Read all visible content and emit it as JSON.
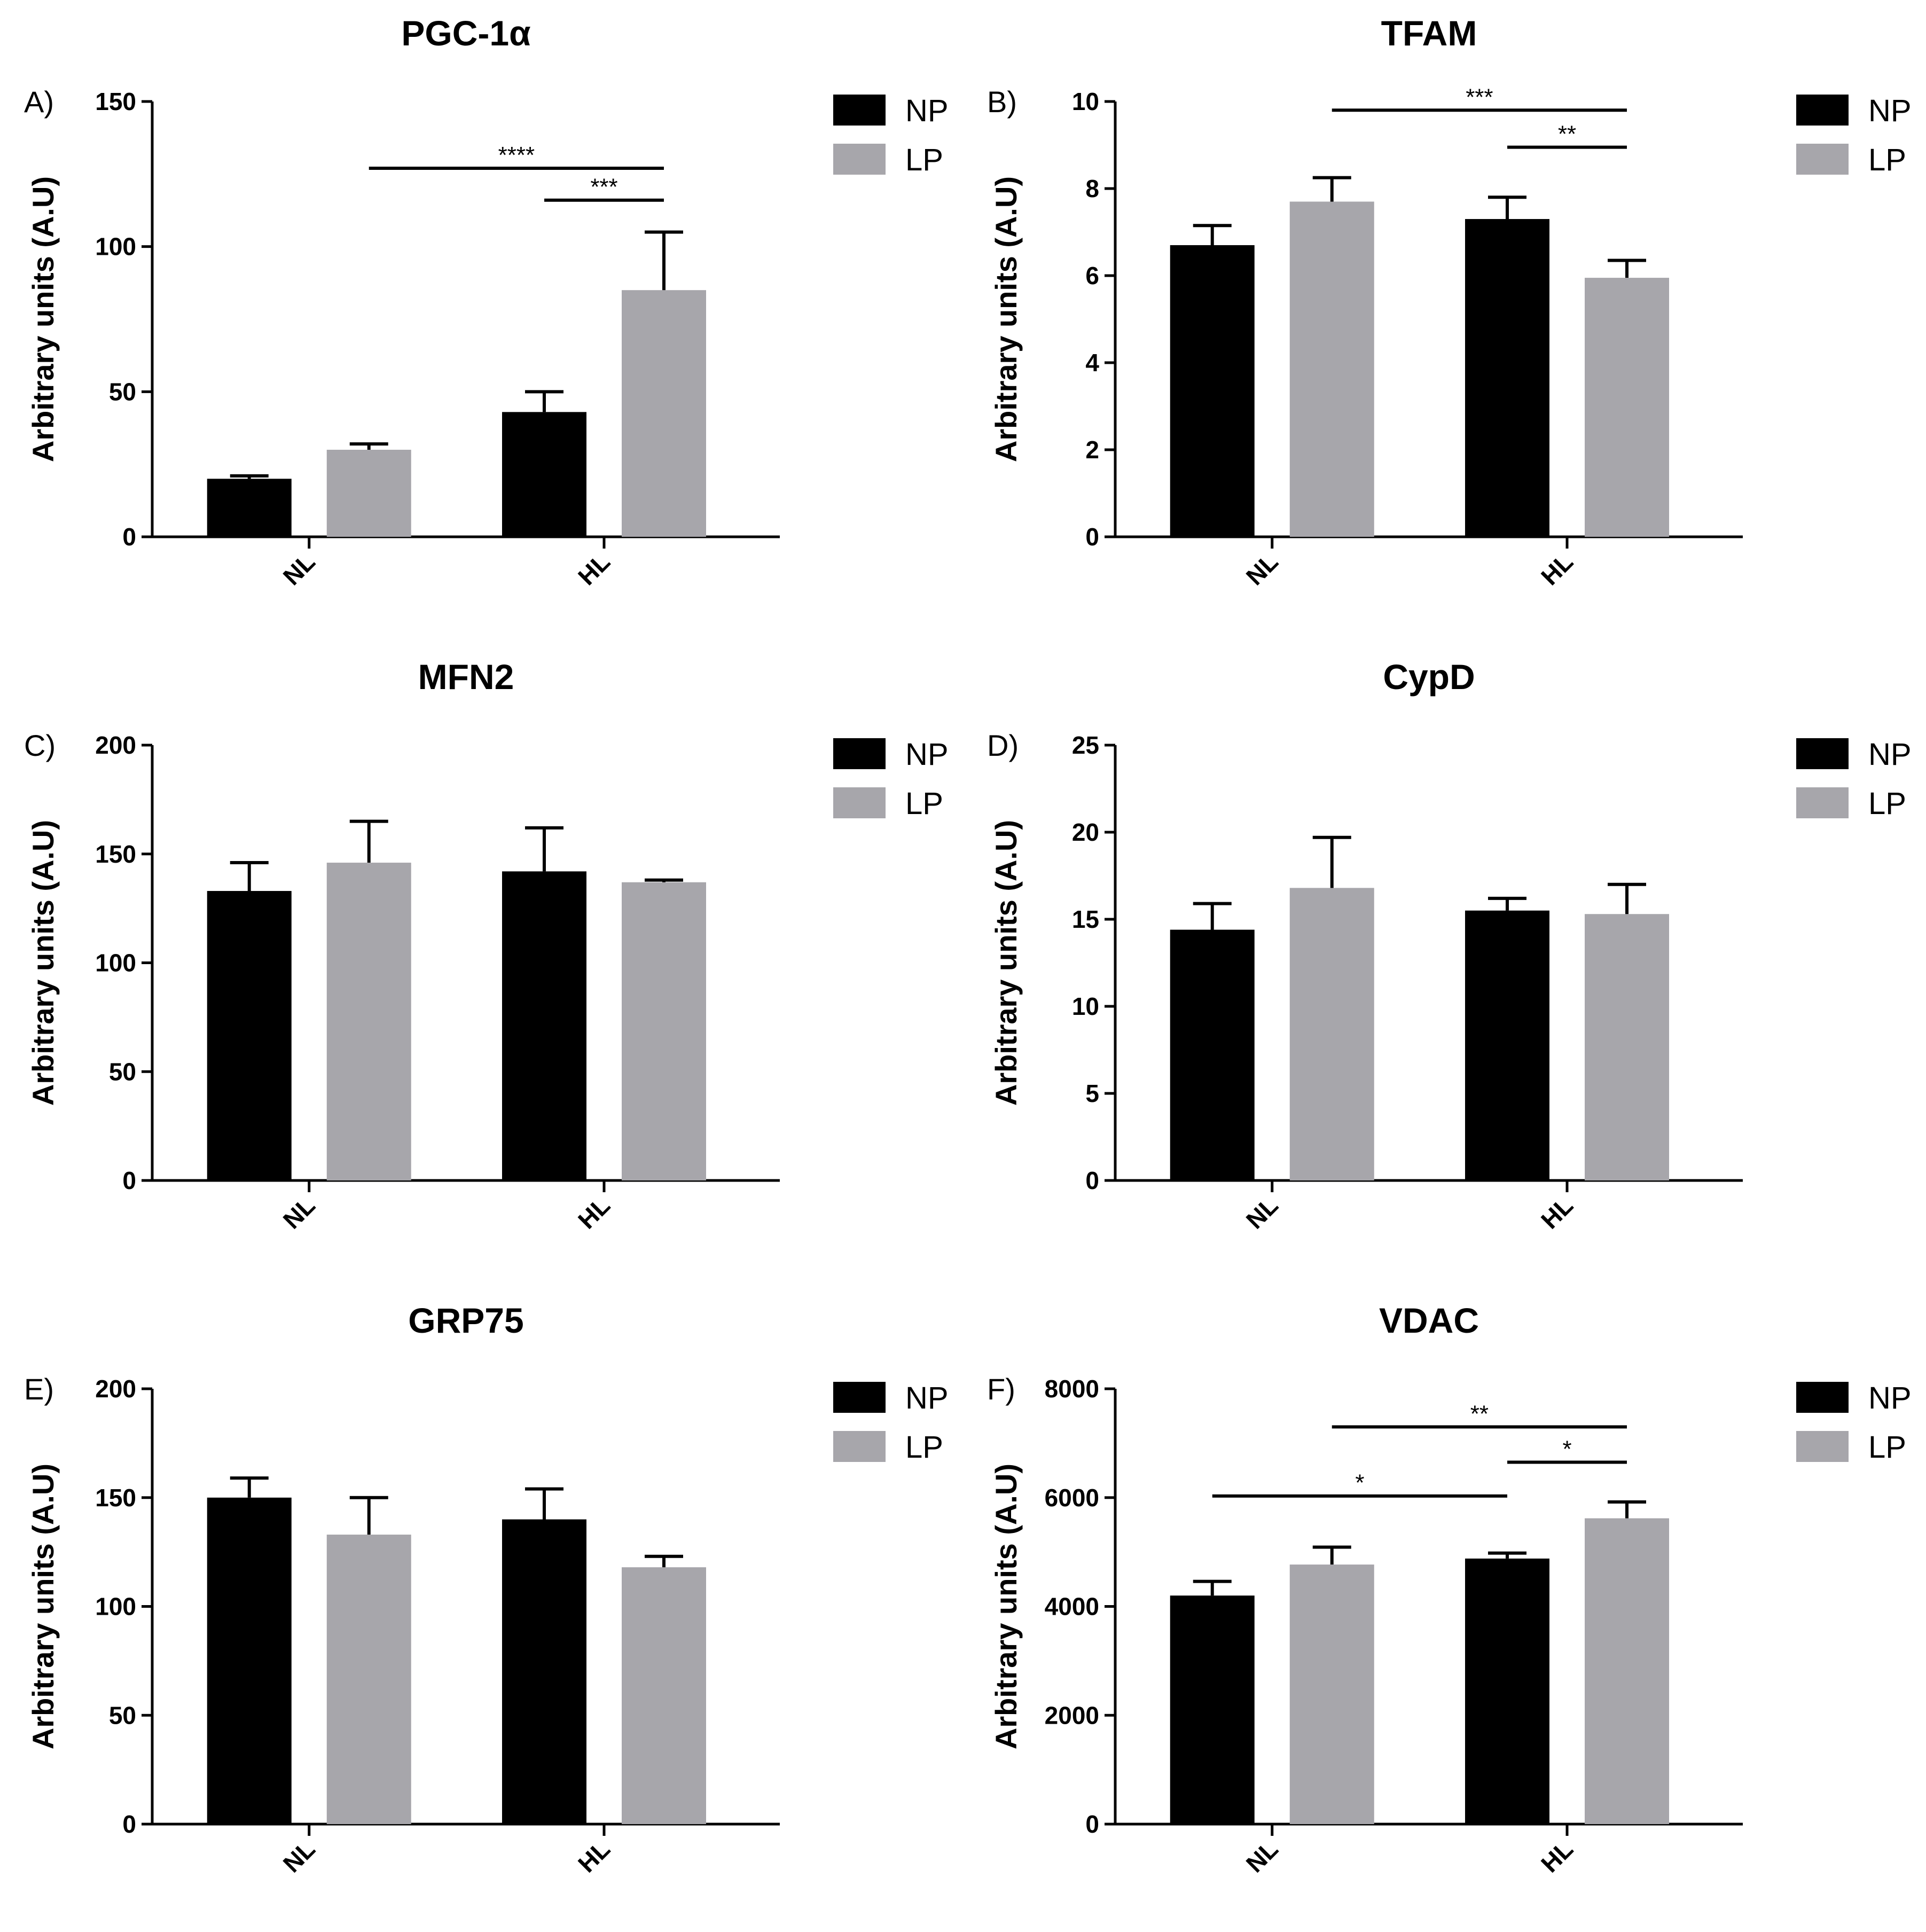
{
  "colors": {
    "NP": "#000000",
    "LP": "#a7a6ab"
  },
  "chart_data": [
    {
      "panel": "A)",
      "title": "PGC-1α",
      "type": "bar",
      "ylabel": "Arbitrary units (A.U)",
      "ylim": [
        0,
        150
      ],
      "yticks": [
        0,
        50,
        100,
        150
      ],
      "ytick_labels": [
        "0",
        "50",
        "100",
        "150"
      ],
      "categories": [
        "NL",
        "HL"
      ],
      "series": [
        {
          "name": "NP",
          "values": [
            20,
            43
          ],
          "errors": [
            1,
            7
          ]
        },
        {
          "name": "LP",
          "values": [
            30,
            85
          ],
          "errors": [
            2,
            20
          ]
        }
      ],
      "legend": [
        "NP",
        "LP"
      ],
      "significance": [
        {
          "from": [
            0,
            1
          ],
          "to": [
            1,
            1
          ],
          "label": "****",
          "y": 127
        },
        {
          "from": [
            1,
            0
          ],
          "to": [
            1,
            1
          ],
          "label": "***",
          "y": 116
        }
      ]
    },
    {
      "panel": "B)",
      "title": "TFAM",
      "type": "bar",
      "ylabel": "Arbitrary units (A.U)",
      "ylim": [
        0,
        10
      ],
      "yticks": [
        0,
        2,
        4,
        6,
        8,
        10
      ],
      "ytick_labels": [
        "0",
        "2",
        "4",
        "6",
        "8",
        "10"
      ],
      "categories": [
        "NL",
        "HL"
      ],
      "series": [
        {
          "name": "NP",
          "values": [
            6.7,
            7.3
          ],
          "errors": [
            0.45,
            0.5
          ]
        },
        {
          "name": "LP",
          "values": [
            7.7,
            5.95
          ],
          "errors": [
            0.55,
            0.4
          ]
        }
      ],
      "legend": [
        "NP",
        "LP"
      ],
      "significance": [
        {
          "from": [
            0,
            1
          ],
          "to": [
            1,
            1
          ],
          "label": "***",
          "y": 9.8
        },
        {
          "from": [
            1,
            0
          ],
          "to": [
            1,
            1
          ],
          "label": "**",
          "y": 8.95
        }
      ]
    },
    {
      "panel": "C)",
      "title": "MFN2",
      "type": "bar",
      "ylabel": "Arbitrary units (A.U)",
      "ylim": [
        0,
        200
      ],
      "yticks": [
        0,
        50,
        100,
        150,
        200
      ],
      "ytick_labels": [
        "0",
        "50",
        "100",
        "150",
        "200"
      ],
      "categories": [
        "NL",
        "HL"
      ],
      "series": [
        {
          "name": "NP",
          "values": [
            133,
            142
          ],
          "errors": [
            13,
            20
          ]
        },
        {
          "name": "LP",
          "values": [
            146,
            137
          ],
          "errors": [
            19,
            1
          ]
        }
      ],
      "legend": [
        "NP",
        "LP"
      ],
      "significance": []
    },
    {
      "panel": "D)",
      "title": "CypD",
      "type": "bar",
      "ylabel": "Arbitrary units (A.U)",
      "ylim": [
        0,
        25
      ],
      "yticks": [
        0,
        5,
        10,
        15,
        20,
        25
      ],
      "ytick_labels": [
        "0",
        "5",
        "10",
        "15",
        "20",
        "25"
      ],
      "categories": [
        "NL",
        "HL"
      ],
      "series": [
        {
          "name": "NP",
          "values": [
            14.4,
            15.5
          ],
          "errors": [
            1.5,
            0.7
          ]
        },
        {
          "name": "LP",
          "values": [
            16.8,
            15.3
          ],
          "errors": [
            2.9,
            1.7
          ]
        }
      ],
      "legend": [
        "NP",
        "LP"
      ],
      "significance": []
    },
    {
      "panel": "E)",
      "title": "GRP75",
      "type": "bar",
      "ylabel": "Arbitrary units (A.U)",
      "ylim": [
        0,
        200
      ],
      "yticks": [
        0,
        50,
        100,
        150,
        200
      ],
      "ytick_labels": [
        "0",
        "50",
        "100",
        "150",
        "200"
      ],
      "categories": [
        "NL",
        "HL"
      ],
      "series": [
        {
          "name": "NP",
          "values": [
            150,
            140
          ],
          "errors": [
            9,
            14
          ]
        },
        {
          "name": "LP",
          "values": [
            133,
            118
          ],
          "errors": [
            17,
            5
          ]
        }
      ],
      "legend": [
        "NP",
        "LP"
      ],
      "significance": []
    },
    {
      "panel": "F)",
      "title": "VDAC",
      "type": "bar",
      "ylabel": "Arbitrary units (A.U)",
      "ylim": [
        0,
        8000
      ],
      "yticks": [
        0,
        2000,
        4000,
        6000,
        8000
      ],
      "ytick_labels": [
        "0",
        "2000",
        "4000",
        "6000",
        "8000"
      ],
      "categories": [
        "NL",
        "HL"
      ],
      "series": [
        {
          "name": "NP",
          "values": [
            4200,
            4880
          ],
          "errors": [
            260,
            100
          ]
        },
        {
          "name": "LP",
          "values": [
            4770,
            5620
          ],
          "errors": [
            320,
            300
          ]
        }
      ],
      "legend": [
        "NP",
        "LP"
      ],
      "significance": [
        {
          "from": [
            0,
            1
          ],
          "to": [
            1,
            1
          ],
          "label": "**",
          "y": 7300
        },
        {
          "from": [
            1,
            0
          ],
          "to": [
            1,
            1
          ],
          "label": "*",
          "y": 6650
        },
        {
          "from": [
            0,
            0
          ],
          "to": [
            1,
            0
          ],
          "label": "*",
          "y": 6030
        }
      ]
    }
  ]
}
